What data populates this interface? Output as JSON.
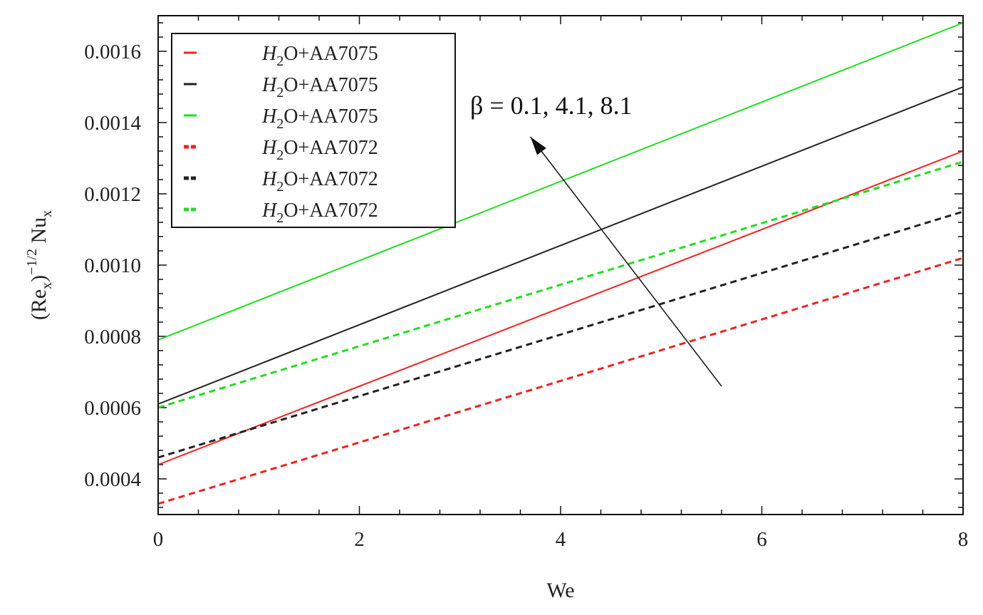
{
  "chart_data": {
    "type": "line",
    "title": "",
    "xlabel": "We",
    "ylabel": "(Re_x)^{-1/2} Nu_x",
    "ylabel_parts": {
      "open": "(Re",
      "sub1": "x",
      "close": ")",
      "exponent": "−1/2",
      "name": " Nu",
      "sub2": "x"
    },
    "xlim": [
      0,
      8
    ],
    "ylim": [
      0.0003,
      0.0017
    ],
    "x_ticks": [
      0,
      2,
      4,
      6,
      8
    ],
    "x_tick_labels": [
      "0",
      "2",
      "4",
      "6",
      "8"
    ],
    "y_ticks": [
      0.0004,
      0.0006,
      0.0008,
      0.001,
      0.0012,
      0.0014,
      0.0016
    ],
    "y_tick_labels": [
      "0.0004",
      "0.0006",
      "0.0008",
      "0.0010",
      "0.0012",
      "0.0014",
      "0.0016"
    ],
    "grid": false,
    "legend_position": "top-left",
    "series": [
      {
        "name": "H2O+AA7075",
        "legend_html": {
          "h": "H",
          "sub": "2",
          "rest": "O+AA7075"
        },
        "color": "#ee2222",
        "dash": false,
        "x": [
          0,
          8
        ],
        "y": [
          0.00044,
          0.00132
        ]
      },
      {
        "name": "H2O+AA7075",
        "legend_html": {
          "h": "H",
          "sub": "2",
          "rest": "O+AA7075"
        },
        "color": "#222222",
        "dash": false,
        "x": [
          0,
          8
        ],
        "y": [
          0.00061,
          0.0015
        ]
      },
      {
        "name": "H2O+AA7075",
        "legend_html": {
          "h": "H",
          "sub": "2",
          "rest": "O+AA7075"
        },
        "color": "#22dd22",
        "dash": false,
        "x": [
          0,
          8
        ],
        "y": [
          0.00079,
          0.00168
        ]
      },
      {
        "name": "H2O+AA7072",
        "legend_html": {
          "h": "H",
          "sub": "2",
          "rest": "O+AA7072"
        },
        "color": "#ee2222",
        "dash": true,
        "x": [
          0,
          8
        ],
        "y": [
          0.00033,
          0.00102
        ]
      },
      {
        "name": "H2O+AA7072",
        "legend_html": {
          "h": "H",
          "sub": "2",
          "rest": "O+AA7072"
        },
        "color": "#222222",
        "dash": true,
        "x": [
          0,
          8
        ],
        "y": [
          0.00046,
          0.00115
        ]
      },
      {
        "name": "H2O+AA7072",
        "legend_html": {
          "h": "H",
          "sub": "2",
          "rest": "O+AA7072"
        },
        "color": "#22dd22",
        "dash": true,
        "x": [
          0,
          8
        ],
        "y": [
          0.0006,
          0.00129
        ]
      }
    ],
    "annotation": {
      "text": "β = 0.1, 4.1, 8.1",
      "arrow_from": [
        5.6,
        0.00066
      ],
      "arrow_to": [
        3.7,
        0.00136
      ]
    }
  }
}
